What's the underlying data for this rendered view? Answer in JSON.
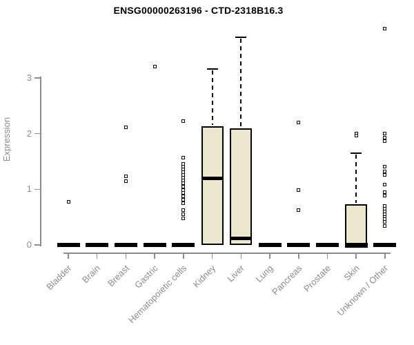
{
  "chart_data": {
    "type": "boxplot",
    "title": "ENSG00000263196 - CTD-2318B16.3",
    "ylabel": "Expression",
    "xlabel": "",
    "yticks": [
      0,
      1,
      2,
      3
    ],
    "ylim": [
      0,
      3.95
    ],
    "grid": false,
    "legend": "none",
    "categories": [
      "Bladder",
      "Brain",
      "Breast",
      "Gastric",
      "Hematopoietic cells",
      "Kidney",
      "Liver",
      "Lung",
      "Pancreas",
      "Prostate",
      "Skin",
      "Unknown / Other"
    ],
    "series": [
      {
        "name": "Bladder",
        "q1": 0,
        "median": 0,
        "q3": 0,
        "whisker_low": 0,
        "whisker_high": 0,
        "outliers": [
          0.78
        ]
      },
      {
        "name": "Brain",
        "q1": 0,
        "median": 0,
        "q3": 0,
        "whisker_low": 0,
        "whisker_high": 0,
        "outliers": []
      },
      {
        "name": "Breast",
        "q1": 0,
        "median": 0,
        "q3": 0,
        "whisker_low": 0,
        "whisker_high": 0,
        "outliers": [
          2.11,
          1.23,
          1.15
        ]
      },
      {
        "name": "Gastric",
        "q1": 0,
        "median": 0,
        "q3": 0,
        "whisker_low": 0,
        "whisker_high": 0,
        "outliers": [
          3.2
        ]
      },
      {
        "name": "Hematopoietic cells",
        "q1": 0,
        "median": 0,
        "q3": 0,
        "whisker_low": 0,
        "whisker_high": 0,
        "outliers": [
          2.23,
          1.57,
          1.46,
          1.41,
          1.36,
          1.31,
          1.26,
          1.21,
          1.16,
          1.11,
          1.05,
          0.99,
          0.93,
          0.87,
          0.81,
          0.75,
          0.62,
          0.55,
          0.48
        ]
      },
      {
        "name": "Kidney",
        "q1": 0,
        "median": 1.2,
        "q3": 2.13,
        "whisker_low": 0,
        "whisker_high": 3.16,
        "outliers": []
      },
      {
        "name": "Liver",
        "q1": 0,
        "median": 0.12,
        "q3": 2.1,
        "whisker_low": 0,
        "whisker_high": 3.73,
        "outliers": []
      },
      {
        "name": "Lung",
        "q1": 0,
        "median": 0,
        "q3": 0,
        "whisker_low": 0,
        "whisker_high": 0,
        "outliers": []
      },
      {
        "name": "Pancreas",
        "q1": 0,
        "median": 0,
        "q3": 0,
        "whisker_low": 0,
        "whisker_high": 0,
        "outliers": [
          2.2,
          0.98,
          0.62
        ]
      },
      {
        "name": "Prostate",
        "q1": 0,
        "median": 0,
        "q3": 0,
        "whisker_low": 0,
        "whisker_high": 0,
        "outliers": []
      },
      {
        "name": "Skin",
        "q1": 0,
        "median": 0,
        "q3": 0.73,
        "whisker_low": 0,
        "whisker_high": 1.65,
        "outliers": [
          2.0,
          1.96
        ]
      },
      {
        "name": "Unknown / Other",
        "q1": 0,
        "median": 0,
        "q3": 0,
        "whisker_low": 0,
        "whisker_high": 0,
        "outliers": [
          3.89,
          2.0,
          1.93,
          1.86,
          1.41,
          1.32,
          1.26,
          1.08,
          0.95,
          0.88,
          0.7,
          0.65,
          0.6,
          0.55,
          0.5,
          0.46,
          0.41,
          0.34
        ]
      }
    ],
    "colors": {
      "box_fill": "#ECE6CD",
      "box_border": "#000000",
      "median": "#000000",
      "whisker": "#000000",
      "outlier_border": "#000000",
      "outlier_fill": "#FFFFFF",
      "axis": "#8C8C8C",
      "tick_label": "#8C8C8C",
      "title_color": "#000000",
      "background": "#FFFFFF"
    }
  }
}
